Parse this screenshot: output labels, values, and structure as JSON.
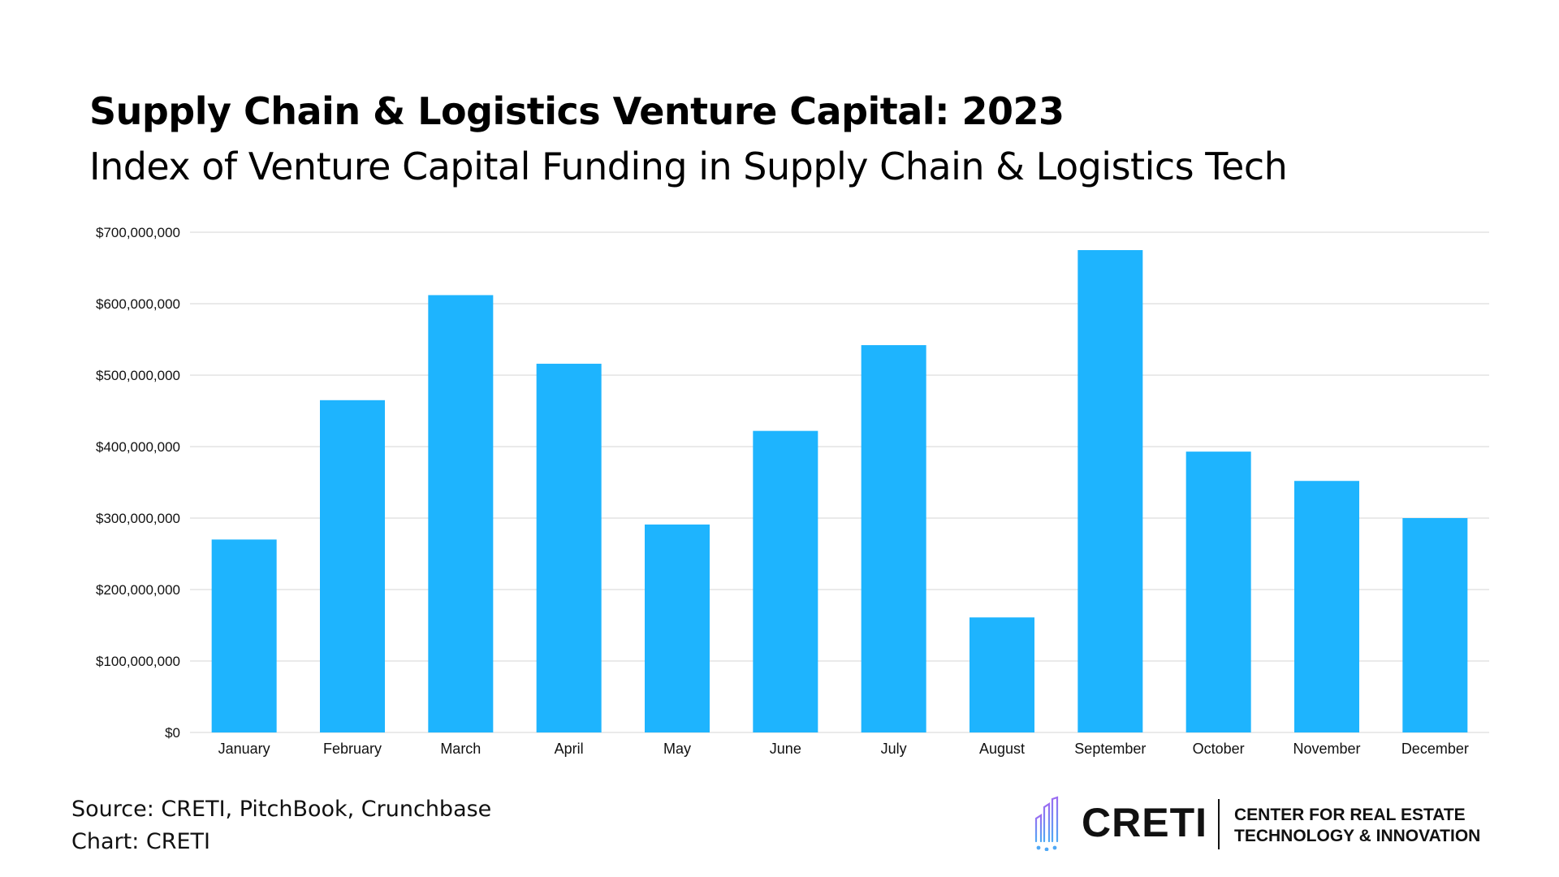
{
  "header": {
    "title": "Supply Chain & Logistics Venture Capital: 2023",
    "subtitle": "Index of Venture Capital Funding in Supply Chain & Logistics Tech"
  },
  "chart_data": {
    "type": "bar",
    "title": "Supply Chain & Logistics Venture Capital: 2023",
    "subtitle": "Index of Venture Capital Funding in Supply Chain & Logistics Tech",
    "categories": [
      "January",
      "February",
      "March",
      "April",
      "May",
      "June",
      "July",
      "August",
      "September",
      "October",
      "November",
      "December"
    ],
    "values": [
      270000000,
      465000000,
      612000000,
      516000000,
      291000000,
      422000000,
      542000000,
      161000000,
      675000000,
      393000000,
      352000000,
      300000000
    ],
    "yticks": [
      "$0",
      "$100,000,000",
      "$200,000,000",
      "$300,000,000",
      "$400,000,000",
      "$500,000,000",
      "$600,000,000",
      "$700,000,000"
    ],
    "ylim": [
      0,
      700000000
    ],
    "xlabel": "",
    "ylabel": "",
    "grid": true,
    "bar_color": "#1EB4FE",
    "grid_color": "#D4D4D4"
  },
  "footer": {
    "source": "Source: CRETI, PitchBook, Crunchbase",
    "credit": "Chart: CRETI"
  },
  "logo": {
    "wordmark": "CRETI",
    "tagline_line1": "CENTER FOR REAL ESTATE",
    "tagline_line2": "TECHNOLOGY & INNOVATION",
    "icon": "skyline-circuit-icon"
  }
}
